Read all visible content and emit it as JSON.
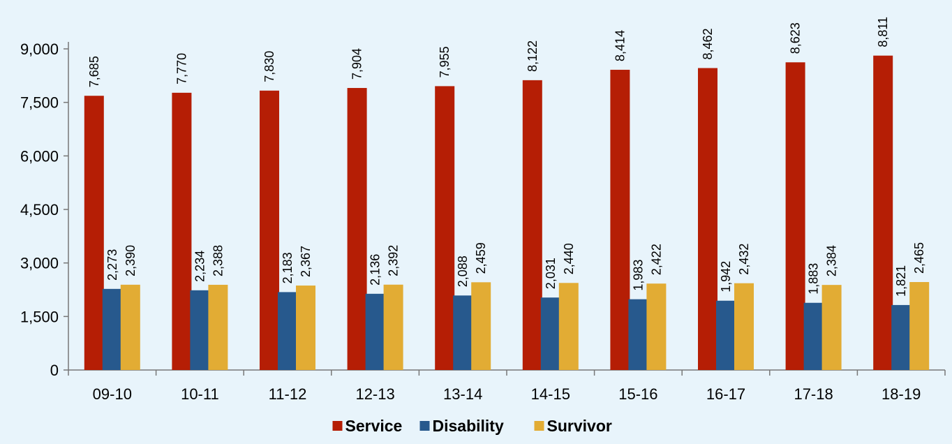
{
  "chart_data": {
    "type": "bar",
    "categories": [
      "09-10",
      "10-11",
      "11-12",
      "12-13",
      "13-14",
      "14-15",
      "15-16",
      "16-17",
      "17-18",
      "18-19"
    ],
    "series": [
      {
        "name": "Service",
        "color": "#b51e05",
        "values": [
          7685,
          7770,
          7830,
          7904,
          7955,
          8122,
          8414,
          8462,
          8623,
          8811
        ],
        "labels": [
          "7,685",
          "7,770",
          "7,830",
          "7,904",
          "7,955",
          "8,122",
          "8,414",
          "8,462",
          "8,623",
          "8,811"
        ]
      },
      {
        "name": "Disability",
        "color": "#27598d",
        "values": [
          2273,
          2234,
          2183,
          2136,
          2088,
          2031,
          1983,
          1942,
          1883,
          1821
        ],
        "labels": [
          "2,273",
          "2,234",
          "2,183",
          "2,136",
          "2,088",
          "2,031",
          "1,983",
          "1,942",
          "1,883",
          "1,821"
        ]
      },
      {
        "name": "Survivor",
        "color": "#e2ac34",
        "values": [
          2390,
          2388,
          2367,
          2392,
          2459,
          2440,
          2422,
          2432,
          2384,
          2465
        ],
        "labels": [
          "2,390",
          "2,388",
          "2,367",
          "2,392",
          "2,459",
          "2,440",
          "2,422",
          "2,432",
          "2,384",
          "2,465"
        ]
      }
    ],
    "yticks": [
      0,
      1500,
      3000,
      4500,
      6000,
      7500,
      9000
    ],
    "ytick_labels": [
      "0",
      "1,500",
      "3,000",
      "4,500",
      "6,000",
      "7,500",
      "9,000"
    ],
    "ylim": [
      0,
      9000
    ],
    "title": "",
    "xlabel": "",
    "ylabel": "",
    "grid": false,
    "legend": "bottom-center",
    "data_labels": "rotated-vertical"
  }
}
